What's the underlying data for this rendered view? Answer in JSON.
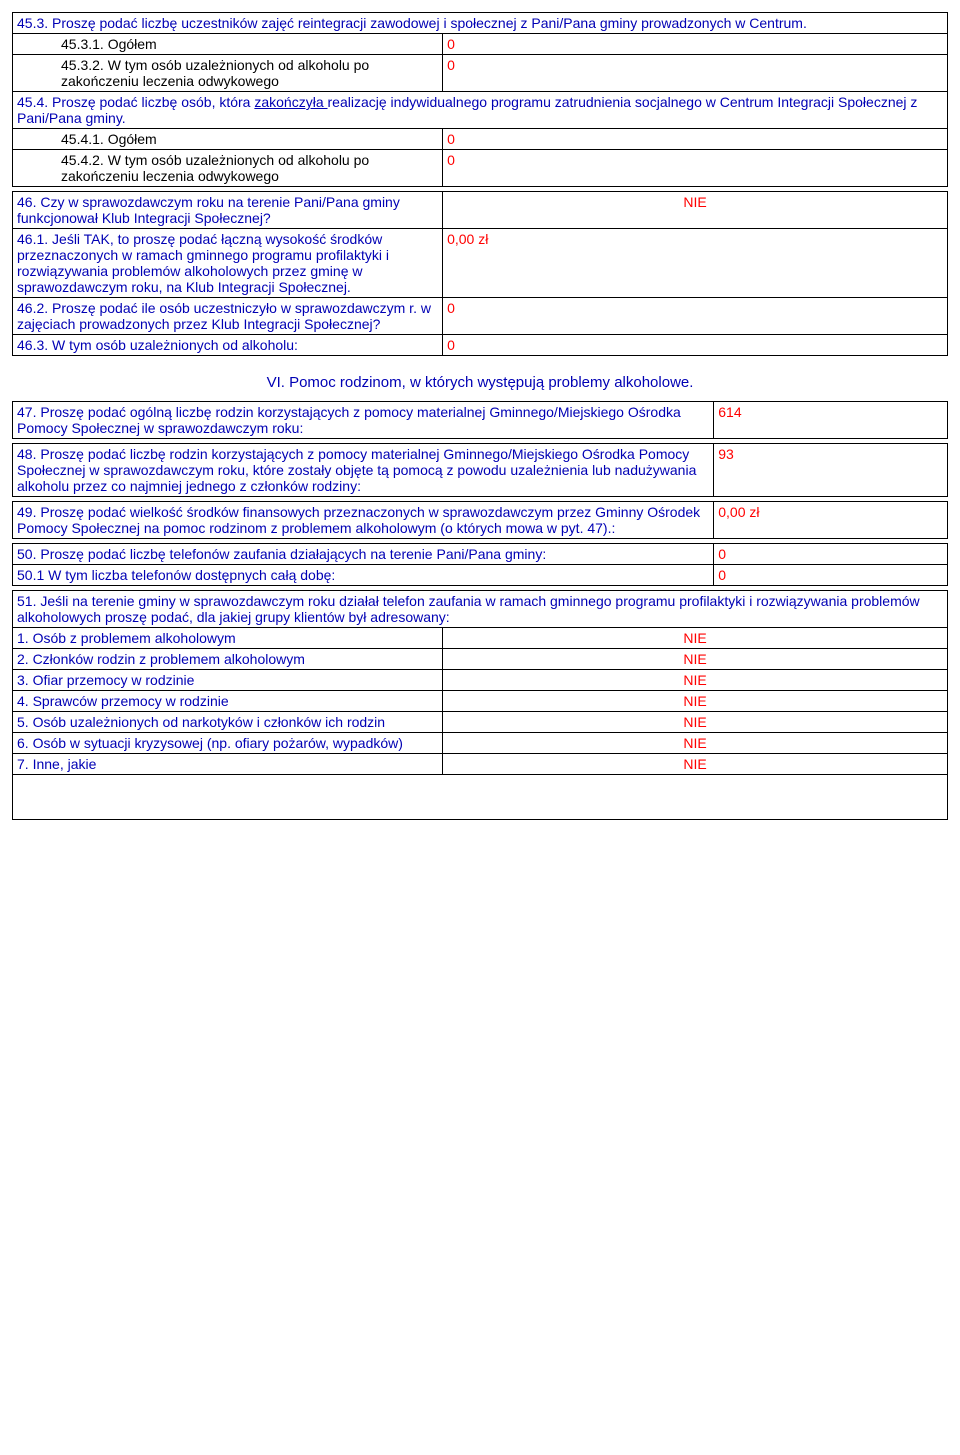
{
  "q45_3": {
    "header": "45.3. Proszę podać liczbę uczestników zajęć reintegracji zawodowej i społecznej z Pani/Pana gminy prowadzonych w Centrum.",
    "r1_label": "45.3.1. Ogółem",
    "r1_val": "0",
    "r2_label": "45.3.2. W tym osób uzależnionych od alkoholu po zakończeniu leczenia odwykowego",
    "r2_val": "0"
  },
  "q45_4": {
    "header_pre": "45.4. Proszę podać liczbę osób, która ",
    "header_ul": "zakończyła ",
    "header_post": "realizację indywidualnego programu zatrudnienia socjalnego w Centrum Integracji Społecznej z Pani/Pana gminy.",
    "r1_label": "45.4.1. Ogółem",
    "r1_val": "0",
    "r2_label": "45.4.2. W tym osób uzależnionych od alkoholu po zakończeniu leczenia odwykowego",
    "r2_val": "0"
  },
  "q46": {
    "q": "46. Czy w sprawozdawczym roku na terenie Pani/Pana gminy funkcjonował Klub Integracji Społecznej?",
    "a": "NIE",
    "r1_label": "46.1. Jeśli TAK, to proszę podać łączną wysokość środków przeznaczonych w ramach gminnego programu profilaktyki i rozwiązywania problemów alkoholowych przez gminę w sprawozdawczym roku, na Klub Integracji Społecznej.",
    "r1_val": "0,00 zł",
    "r2_label": "46.2. Proszę podać ile osób uczestniczyło w sprawozdawczym r. w zajęciach prowadzonych przez Klub Integracji Społecznej?",
    "r2_val": "0",
    "r3_label": "46.3. W tym osób uzależnionych od alkoholu:",
    "r3_val": "0"
  },
  "section_vi": "VI. Pomoc rodzinom, w których występują problemy alkoholowe.",
  "q47": {
    "q": "47. Proszę podać ogólną liczbę rodzin korzystających z pomocy materialnej Gminnego/Miejskiego Ośrodka Pomocy Społecznej w sprawozdawczym roku:",
    "a": "614"
  },
  "q48": {
    "q": "48. Proszę podać liczbę rodzin korzystających z pomocy materialnej Gminnego/Miejskiego Ośrodka Pomocy Społecznej w sprawozdawczym roku, które zostały objęte tą pomocą z powodu uzależnienia lub nadużywania alkoholu przez co najmniej jednego z członków rodziny:",
    "a": "93"
  },
  "q49": {
    "q": "49. Proszę podać wielkość środków finansowych przeznaczonych w sprawozdawczym przez Gminny Ośrodek Pomocy Społecznej na pomoc rodzinom z problemem alkoholowym (o których mowa w pyt. 47).:",
    "a": "0,00 zł"
  },
  "q50": {
    "q": "50. Proszę podać liczbę telefonów zaufania działających na terenie Pani/Pana gminy:",
    "a": "0",
    "sub_q": "50.1 W tym liczba telefonów dostępnych całą dobę:",
    "sub_a": "0"
  },
  "q51": {
    "header": "51. Jeśli na terenie gminy w sprawozdawczym roku działał telefon zaufania w ramach gminnego programu profilaktyki i rozwiązywania problemów alkoholowych proszę podać, dla jakiej grupy klientów był adresowany:",
    "rows": [
      {
        "label": "1. Osób z problemem alkoholowym",
        "val": "NIE"
      },
      {
        "label": "2. Członków rodzin z problemem alkoholowym",
        "val": "NIE"
      },
      {
        "label": "3. Ofiar przemocy w rodzinie",
        "val": "NIE"
      },
      {
        "label": "4. Sprawców przemocy w rodzinie",
        "val": "NIE"
      },
      {
        "label": "5. Osób uzależnionych od narkotyków i członków ich rodzin",
        "val": "NIE"
      },
      {
        "label": "6. Osób w sytuacji kryzysowej (np. ofiary pożarów, wypadków)",
        "val": "NIE"
      },
      {
        "label": "7. Inne, jakie",
        "val": "NIE"
      }
    ]
  }
}
